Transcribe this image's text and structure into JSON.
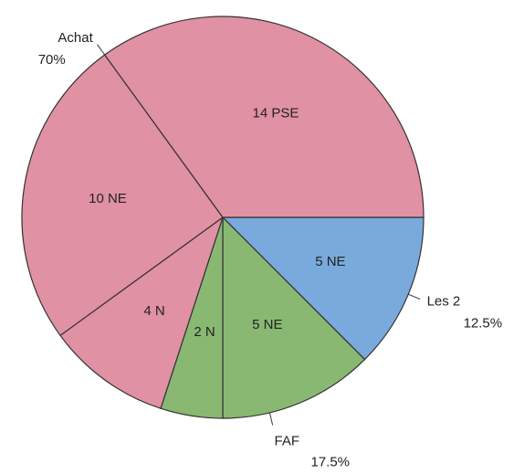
{
  "chart_data": {
    "type": "pie",
    "groups": [
      {
        "name": "Les 2",
        "value": 12.5,
        "value_label": "12.5%",
        "color": "#7aaadc",
        "slices": [
          {
            "label": "5 NE",
            "value": 5
          }
        ]
      },
      {
        "name": "FAF",
        "value": 17.5,
        "value_label": "17.5%",
        "color": "#88b872",
        "slices": [
          {
            "label": "5 NE",
            "value": 5
          },
          {
            "label": "2 N",
            "value": 2
          }
        ]
      },
      {
        "name": "Achat",
        "value": 70,
        "value_label": "70%",
        "color": "#e091a3",
        "slices": [
          {
            "label": "4 N",
            "value": 4
          },
          {
            "label": "10 NE",
            "value": 10
          },
          {
            "label": "14 PSE",
            "value": 14
          }
        ]
      }
    ]
  }
}
